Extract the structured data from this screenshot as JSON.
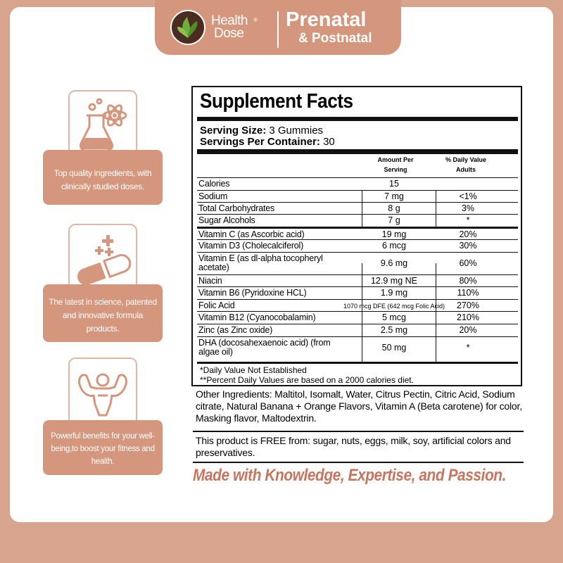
{
  "brand": {
    "line1": "Health",
    "line2": "Dose",
    "reg": "®"
  },
  "header": {
    "title": "Prenatal",
    "subtitle": "& Postnatal"
  },
  "features": [
    {
      "icon": "lab-flask-atom-icon",
      "text": "Top quality ingredients, with clinically studied doses."
    },
    {
      "icon": "capsule-plus-icon",
      "text": "The latest in science, patented and innovative formula products."
    },
    {
      "icon": "strong-man-icon",
      "text": "Powerful benefits for your well-being,to boost your fitness and health."
    }
  ],
  "facts": {
    "title": "Supplement Facts",
    "serving_size_label": "Serving Size:",
    "serving_size_value": "3 Gummies",
    "servings_label": "Servings Per Container:",
    "servings_value": "30",
    "col_amount_1": "Amount Per",
    "col_amount_2": "Serving",
    "col_dv_1": "% Daily Value",
    "col_dv_2": "Adults",
    "rows": [
      {
        "name": "Calories",
        "amount": "15",
        "dv": ""
      },
      {
        "name": "Sodium",
        "amount": "7 mg",
        "dv": "<1%"
      },
      {
        "name": "Total Carbohydrates",
        "amount": "8 g",
        "dv": "3%"
      },
      {
        "name": "Sugar Alcohols",
        "amount": "7 g",
        "dv": "*"
      },
      {
        "name": "Vitamin C (as Ascorbic acid)",
        "amount": "19 mg",
        "dv": "20%"
      },
      {
        "name": "Vitamin D3 (Cholecalciferol)",
        "amount": "6 mcg",
        "dv": "30%"
      },
      {
        "name": "Vitamin E (as dl-alpha tocopheryl",
        "name2": "acetate)",
        "amount": "9.6 mg",
        "dv": "60%"
      },
      {
        "name": "Niacin",
        "amount": "12.9 mg NE",
        "dv": "80%"
      },
      {
        "name": "Vitamin B6 (Pyridoxine HCL)",
        "amount": "1.9 mg",
        "dv": "110%"
      },
      {
        "name": "Folic Acid",
        "amount": "1070 mcg DFE (642 mcg Folic Acid)",
        "dv": "270%"
      },
      {
        "name": "Vitamin B12 (Cyanocobalamin)",
        "amount": "5 mcg",
        "dv": "210%"
      },
      {
        "name": "Zinc (as Zinc oxide)",
        "amount": "2.5 mg",
        "dv": "20%"
      },
      {
        "name": "DHA (docosahexaenoic acid) (from",
        "name2": "algae oil)",
        "amount": "50 mg",
        "dv": "*"
      }
    ],
    "foot1": "*Daily Value Not Established",
    "foot2": "**Percent Daily Values are based on a 2000 calories diet."
  },
  "other_ingredients": "Other Ingredients: Maltitol, Isomalt, Water, Citrus Pectin, Citric Acid, Sodium citrate, Natural Banana + Orange Flavors, Vitamin A (Beta carotene) for color, Masking flavor, Maltodextrin.",
  "free_from": "This product is FREE from: sugar, nuts, eggs, milk, soy, artificial colors and preservatives.",
  "tagline": "Made with Knowledge, Expertise, and Passion.",
  "colors": {
    "accent": "#d4967c",
    "background": "#d7a58e",
    "tagline": "#c6755f"
  }
}
